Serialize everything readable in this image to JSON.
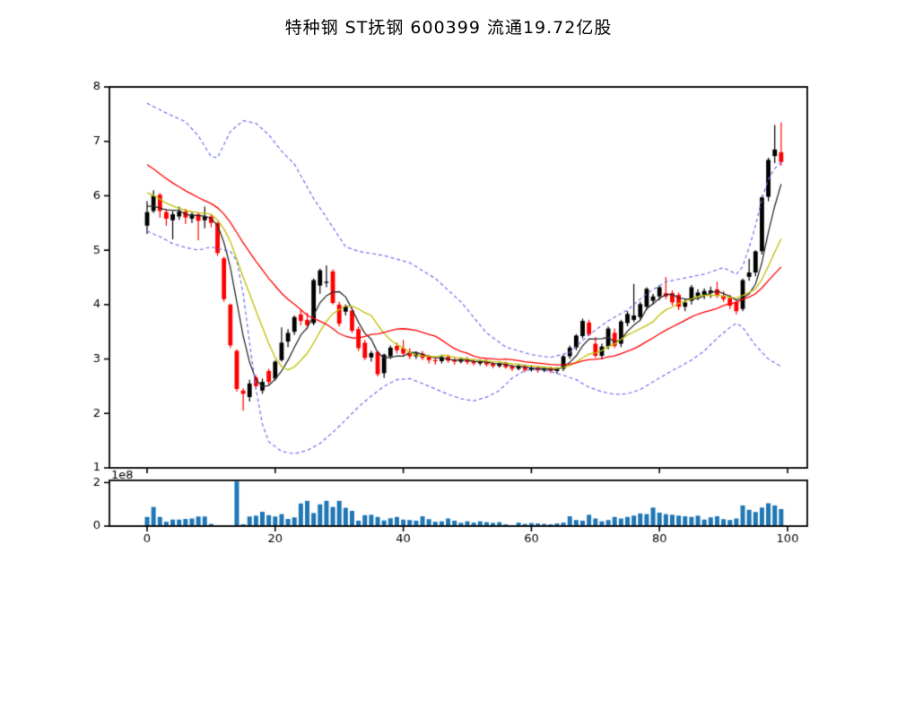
{
  "title": "特种钢 ST抚钢 600399 流通19.72亿股",
  "chart_data": {
    "type": "candlestick",
    "panes": [
      "price",
      "volume"
    ],
    "title": "特种钢 ST抚钢 600399 流通19.72亿股",
    "x_ticks": [
      0,
      20,
      40,
      60,
      80,
      100
    ],
    "price_axis": {
      "ylim": [
        1,
        8
      ],
      "ticks": [
        1,
        2,
        3,
        4,
        5,
        6,
        7,
        8
      ]
    },
    "volume_axis": {
      "ylim": [
        0,
        2.1
      ],
      "ticks": [
        0,
        2
      ],
      "offset_label": "1e8"
    },
    "legend_position": "none",
    "grid": false,
    "colors": {
      "up": "#000000",
      "down": "#ff0000",
      "volume": "#1f77b4",
      "ma5": "#2b2b2b",
      "ma10": "#bfbf00",
      "ma20": "#ff0000",
      "band": "#6e6ef2",
      "axis": "#000000"
    },
    "ohlc": [
      [
        5.45,
        5.9,
        5.3,
        5.7
      ],
      [
        5.72,
        6.1,
        5.68,
        6.0
      ],
      [
        6.02,
        6.05,
        5.6,
        5.72
      ],
      [
        5.7,
        5.76,
        5.45,
        5.58
      ],
      [
        5.55,
        5.72,
        5.2,
        5.66
      ],
      [
        5.62,
        5.8,
        5.56,
        5.71
      ],
      [
        5.71,
        5.76,
        5.48,
        5.6
      ],
      [
        5.58,
        5.7,
        5.5,
        5.66
      ],
      [
        5.66,
        5.7,
        5.18,
        5.54
      ],
      [
        5.55,
        5.8,
        5.4,
        5.62
      ],
      [
        5.62,
        5.65,
        5.42,
        5.5
      ],
      [
        5.5,
        5.52,
        4.9,
        4.95
      ],
      [
        4.85,
        4.88,
        4.05,
        4.1
      ],
      [
        4.0,
        4.02,
        3.2,
        3.25
      ],
      [
        3.15,
        3.18,
        2.4,
        2.45
      ],
      [
        2.42,
        2.46,
        2.05,
        2.36
      ],
      [
        2.3,
        2.62,
        2.22,
        2.55
      ],
      [
        2.66,
        2.7,
        2.44,
        2.5
      ],
      [
        2.42,
        2.64,
        2.36,
        2.58
      ],
      [
        2.78,
        2.82,
        2.52,
        2.58
      ],
      [
        2.64,
        2.98,
        2.6,
        2.95
      ],
      [
        2.98,
        3.58,
        2.95,
        3.3
      ],
      [
        3.32,
        3.55,
        3.22,
        3.48
      ],
      [
        3.5,
        3.8,
        3.44,
        3.77
      ],
      [
        3.82,
        3.92,
        3.62,
        3.7
      ],
      [
        3.72,
        3.85,
        3.55,
        3.62
      ],
      [
        3.66,
        4.48,
        3.62,
        4.45
      ],
      [
        4.35,
        4.66,
        4.2,
        4.63
      ],
      [
        4.4,
        4.72,
        4.32,
        4.42
      ],
      [
        4.61,
        4.65,
        4.0,
        4.03
      ],
      [
        4.0,
        4.05,
        3.6,
        3.65
      ],
      [
        3.87,
        4.0,
        3.8,
        3.97
      ],
      [
        3.89,
        3.92,
        3.48,
        3.52
      ],
      [
        3.55,
        3.6,
        3.15,
        3.2
      ],
      [
        3.3,
        3.35,
        2.98,
        3.02
      ],
      [
        3.03,
        3.15,
        2.95,
        3.11
      ],
      [
        3.13,
        3.15,
        2.68,
        2.72
      ],
      [
        2.74,
        3.1,
        2.65,
        3.08
      ],
      [
        3.05,
        3.25,
        3.0,
        3.21
      ],
      [
        3.24,
        3.3,
        3.1,
        3.16
      ],
      [
        3.2,
        3.35,
        3.05,
        3.1
      ],
      [
        3.12,
        3.2,
        3.0,
        3.05
      ],
      [
        3.05,
        3.14,
        3.0,
        3.1
      ],
      [
        3.1,
        3.15,
        2.98,
        3.02
      ],
      [
        3.04,
        3.08,
        2.92,
        2.98
      ],
      [
        2.98,
        3.05,
        2.9,
        2.96
      ],
      [
        2.96,
        3.08,
        2.92,
        3.04
      ],
      [
        3.04,
        3.08,
        2.93,
        2.97
      ],
      [
        2.99,
        3.04,
        2.9,
        2.95
      ],
      [
        2.95,
        3.03,
        2.92,
        3.0
      ],
      [
        3.0,
        3.04,
        2.9,
        2.94
      ],
      [
        2.96,
        3.0,
        2.88,
        2.92
      ],
      [
        2.92,
        2.99,
        2.88,
        2.96
      ],
      [
        2.96,
        2.99,
        2.86,
        2.9
      ],
      [
        2.92,
        2.95,
        2.83,
        2.87
      ],
      [
        2.87,
        2.94,
        2.84,
        2.92
      ],
      [
        2.92,
        2.95,
        2.82,
        2.85
      ],
      [
        2.87,
        2.9,
        2.78,
        2.82
      ],
      [
        2.82,
        2.9,
        2.79,
        2.87
      ],
      [
        2.87,
        2.9,
        2.76,
        2.8
      ],
      [
        2.8,
        2.88,
        2.77,
        2.84
      ],
      [
        2.84,
        2.87,
        2.75,
        2.79
      ],
      [
        2.79,
        2.86,
        2.76,
        2.83
      ],
      [
        2.83,
        2.86,
        2.74,
        2.78
      ],
      [
        2.78,
        2.85,
        2.73,
        2.82
      ],
      [
        2.82,
        3.08,
        2.78,
        3.05
      ],
      [
        3.05,
        3.25,
        3.0,
        3.21
      ],
      [
        3.21,
        3.46,
        3.16,
        3.43
      ],
      [
        3.42,
        3.74,
        3.38,
        3.7
      ],
      [
        3.67,
        3.72,
        3.42,
        3.45
      ],
      [
        3.28,
        3.4,
        3.02,
        3.06
      ],
      [
        3.06,
        3.28,
        3.0,
        3.23
      ],
      [
        3.23,
        3.6,
        3.18,
        3.56
      ],
      [
        3.48,
        3.56,
        3.2,
        3.24
      ],
      [
        3.28,
        3.72,
        3.22,
        3.69
      ],
      [
        3.66,
        3.88,
        3.6,
        3.83
      ],
      [
        3.72,
        4.38,
        3.68,
        3.8
      ],
      [
        3.77,
        4.05,
        3.72,
        4.01
      ],
      [
        3.96,
        4.32,
        3.9,
        4.29
      ],
      [
        4.07,
        4.2,
        4.0,
        4.15
      ],
      [
        4.15,
        4.36,
        4.08,
        4.32
      ],
      [
        4.21,
        4.51,
        4.1,
        4.15
      ],
      [
        4.21,
        4.26,
        3.98,
        4.04
      ],
      [
        4.18,
        4.22,
        3.9,
        3.96
      ],
      [
        3.96,
        4.1,
        3.88,
        4.04
      ],
      [
        4.07,
        4.36,
        4.0,
        4.32
      ],
      [
        4.15,
        4.28,
        4.08,
        4.22
      ],
      [
        4.18,
        4.3,
        4.1,
        4.25
      ],
      [
        4.21,
        4.33,
        4.12,
        4.26
      ],
      [
        4.28,
        4.42,
        4.12,
        4.18
      ],
      [
        4.16,
        4.25,
        4.05,
        4.1
      ],
      [
        4.12,
        4.18,
        3.92,
        3.98
      ],
      [
        4.05,
        4.1,
        3.82,
        3.88
      ],
      [
        3.92,
        4.48,
        3.88,
        4.45
      ],
      [
        4.51,
        4.84,
        4.44,
        4.59
      ],
      [
        4.59,
        5.0,
        4.52,
        4.98
      ],
      [
        4.98,
        6.0,
        4.92,
        5.97
      ],
      [
        5.98,
        6.7,
        5.9,
        6.66
      ],
      [
        6.73,
        7.3,
        6.6,
        6.85
      ],
      [
        6.8,
        7.35,
        6.55,
        6.62
      ]
    ],
    "volume_1e8": [
      0.42,
      0.88,
      0.42,
      0.2,
      0.3,
      0.3,
      0.33,
      0.35,
      0.44,
      0.44,
      0.1,
      0.03,
      0.02,
      0.02,
      2.05,
      0.08,
      0.44,
      0.48,
      0.66,
      0.5,
      0.44,
      0.55,
      0.33,
      0.4,
      1.04,
      1.16,
      0.6,
      1.0,
      1.16,
      0.88,
      1.16,
      0.84,
      0.7,
      0.25,
      0.5,
      0.52,
      0.42,
      0.26,
      0.36,
      0.42,
      0.3,
      0.28,
      0.25,
      0.45,
      0.32,
      0.2,
      0.22,
      0.35,
      0.25,
      0.15,
      0.22,
      0.16,
      0.22,
      0.18,
      0.15,
      0.18,
      0.08,
      0.04,
      0.16,
      0.1,
      0.14,
      0.12,
      0.1,
      0.08,
      0.12,
      0.16,
      0.45,
      0.28,
      0.25,
      0.52,
      0.35,
      0.22,
      0.28,
      0.42,
      0.35,
      0.42,
      0.48,
      0.58,
      0.55,
      0.85,
      0.62,
      0.55,
      0.52,
      0.48,
      0.45,
      0.42,
      0.48,
      0.3,
      0.4,
      0.45,
      0.32,
      0.28,
      0.35,
      0.95,
      0.75,
      0.65,
      0.85,
      1.05,
      0.95,
      0.78
    ],
    "prehistory_closes": [
      7.6,
      7.48,
      7.36,
      7.25,
      7.14,
      7.03,
      6.92,
      6.81,
      6.7,
      6.6,
      6.5,
      6.4,
      6.3,
      6.2,
      6.1,
      6.0,
      5.88,
      5.76,
      5.7
    ],
    "ma_windows": {
      "ma5": 5,
      "ma10": 10,
      "ma20": 20
    },
    "boll_upper_waypoints": [
      [
        0,
        7.7
      ],
      [
        3,
        7.52
      ],
      [
        6,
        7.36
      ],
      [
        8,
        7.1
      ],
      [
        10,
        6.72
      ],
      [
        11,
        6.7
      ],
      [
        13,
        7.18
      ],
      [
        15,
        7.38
      ],
      [
        17,
        7.33
      ],
      [
        19,
        7.12
      ],
      [
        21,
        6.82
      ],
      [
        23,
        6.58
      ],
      [
        26,
        5.95
      ],
      [
        29,
        5.42
      ],
      [
        31,
        5.06
      ],
      [
        33,
        4.98
      ],
      [
        37,
        4.9
      ],
      [
        41,
        4.77
      ],
      [
        45,
        4.48
      ],
      [
        49,
        4.05
      ],
      [
        53,
        3.48
      ],
      [
        56,
        3.22
      ],
      [
        60,
        3.08
      ],
      [
        63,
        3.03
      ],
      [
        66,
        3.12
      ],
      [
        69,
        3.45
      ],
      [
        72,
        3.7
      ],
      [
        75,
        3.9
      ],
      [
        78,
        4.2
      ],
      [
        81,
        4.42
      ],
      [
        84,
        4.49
      ],
      [
        87,
        4.56
      ],
      [
        90,
        4.68
      ],
      [
        92,
        4.56
      ],
      [
        93,
        4.7
      ],
      [
        94,
        5.05
      ],
      [
        95,
        5.45
      ],
      [
        96,
        5.95
      ],
      [
        97,
        6.3
      ],
      [
        98,
        6.5
      ],
      [
        99,
        6.62
      ]
    ],
    "boll_lower_waypoints": [
      [
        0,
        5.35
      ],
      [
        2,
        5.25
      ],
      [
        4,
        5.12
      ],
      [
        6,
        5.05
      ],
      [
        8,
        5.0
      ],
      [
        10,
        5.06
      ],
      [
        12,
        5.0
      ],
      [
        13,
        4.98
      ],
      [
        14,
        4.8
      ],
      [
        15,
        4.2
      ],
      [
        16,
        3.3
      ],
      [
        17,
        2.45
      ],
      [
        18,
        1.8
      ],
      [
        19,
        1.48
      ],
      [
        21,
        1.3
      ],
      [
        23,
        1.26
      ],
      [
        25,
        1.32
      ],
      [
        27,
        1.45
      ],
      [
        29,
        1.65
      ],
      [
        31,
        1.88
      ],
      [
        33,
        2.12
      ],
      [
        35,
        2.32
      ],
      [
        37,
        2.5
      ],
      [
        39,
        2.62
      ],
      [
        41,
        2.64
      ],
      [
        43,
        2.55
      ],
      [
        45,
        2.45
      ],
      [
        47,
        2.35
      ],
      [
        49,
        2.27
      ],
      [
        51,
        2.23
      ],
      [
        53,
        2.3
      ],
      [
        55,
        2.42
      ],
      [
        57,
        2.65
      ],
      [
        59,
        2.79
      ],
      [
        61,
        2.81
      ],
      [
        63,
        2.77
      ],
      [
        65,
        2.7
      ],
      [
        67,
        2.62
      ],
      [
        69,
        2.48
      ],
      [
        71,
        2.4
      ],
      [
        73,
        2.35
      ],
      [
        75,
        2.36
      ],
      [
        77,
        2.44
      ],
      [
        79,
        2.58
      ],
      [
        81,
        2.72
      ],
      [
        83,
        2.85
      ],
      [
        85,
        2.98
      ],
      [
        87,
        3.15
      ],
      [
        89,
        3.38
      ],
      [
        91,
        3.58
      ],
      [
        92,
        3.66
      ],
      [
        93,
        3.58
      ],
      [
        95,
        3.25
      ],
      [
        97,
        3.0
      ],
      [
        99,
        2.86
      ]
    ]
  }
}
